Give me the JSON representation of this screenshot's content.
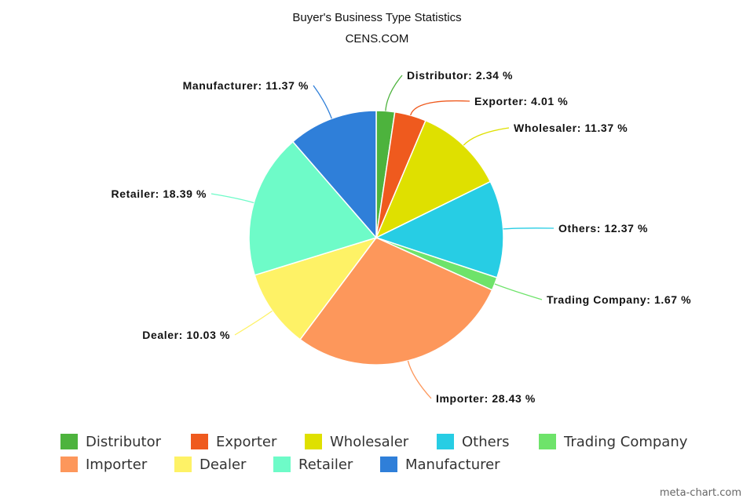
{
  "chart_data": {
    "type": "pie",
    "title": "Buyer's Business Type Statistics",
    "subtitle": "CENS.COM",
    "slices": [
      {
        "name": "Distributor",
        "value": 2.34,
        "label": "Distributor: 2.34 %",
        "color": "#4db33d"
      },
      {
        "name": "Exporter",
        "value": 4.01,
        "label": "Exporter: 4.01 %",
        "color": "#ef5a1e"
      },
      {
        "name": "Wholesaler",
        "value": 11.37,
        "label": "Wholesaler: 11.37 %",
        "color": "#dfe000"
      },
      {
        "name": "Others",
        "value": 12.37,
        "label": "Others: 12.37 %",
        "color": "#27cde4"
      },
      {
        "name": "Trading Company",
        "value": 1.67,
        "label": "Trading Company: 1.67 %",
        "color": "#6ee36a"
      },
      {
        "name": "Importer",
        "value": 28.43,
        "label": "Importer: 28.43 %",
        "color": "#fd975b"
      },
      {
        "name": "Dealer",
        "value": 10.03,
        "label": "Dealer: 10.03 %",
        "color": "#fef266"
      },
      {
        "name": "Retailer",
        "value": 18.39,
        "label": "Retailer: 18.39 %",
        "color": "#6efbc8"
      },
      {
        "name": "Manufacturer",
        "value": 11.37,
        "label": "Manufacturer: 11.37 %",
        "color": "#2f7fd9"
      }
    ],
    "legend_position": "bottom"
  },
  "credit": "meta-chart.com"
}
